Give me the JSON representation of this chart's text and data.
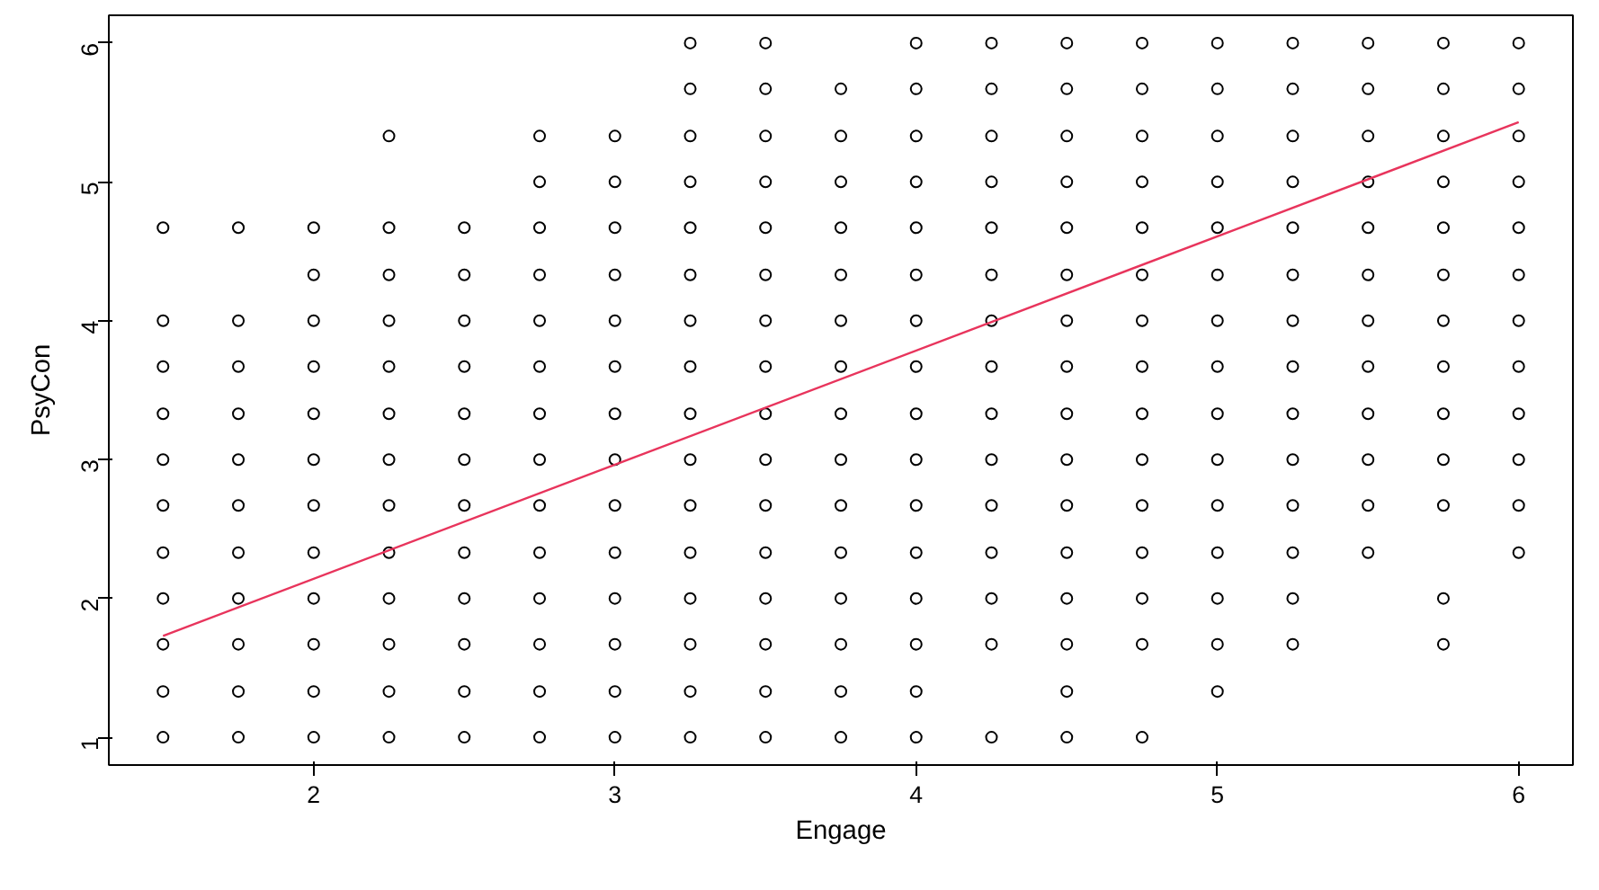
{
  "chart_data": {
    "type": "scatter",
    "xlabel": "Engage",
    "ylabel": "PsyCon",
    "xlim": [
      1.32,
      6.18
    ],
    "ylim": [
      0.8,
      6.2
    ],
    "xticks": [
      2,
      3,
      4,
      5,
      6
    ],
    "yticks": [
      1,
      2,
      3,
      4,
      5,
      6
    ],
    "grid": false,
    "series": [
      {
        "marker": "circle",
        "color": "#000000",
        "x": [
          1.5,
          1.5,
          1.5,
          1.5,
          1.5,
          1.5,
          1.5,
          1.5,
          1.5,
          1.5,
          1.5,
          1.75,
          1.75,
          1.75,
          1.75,
          1.75,
          1.75,
          1.75,
          1.75,
          1.75,
          1.75,
          1.75,
          2,
          2,
          2,
          2,
          2,
          2,
          2,
          2,
          2,
          2,
          2,
          2,
          2.25,
          2.25,
          2.25,
          2.25,
          2.25,
          2.25,
          2.25,
          2.25,
          2.25,
          2.25,
          2.25,
          2.25,
          2.25,
          2.5,
          2.5,
          2.5,
          2.5,
          2.5,
          2.5,
          2.5,
          2.5,
          2.5,
          2.5,
          2.5,
          2.5,
          2.75,
          2.75,
          2.75,
          2.75,
          2.75,
          2.75,
          2.75,
          2.75,
          2.75,
          2.75,
          2.75,
          2.75,
          2.75,
          2.75,
          3,
          3,
          3,
          3,
          3,
          3,
          3,
          3,
          3,
          3,
          3,
          3,
          3,
          3,
          3.25,
          3.25,
          3.25,
          3.25,
          3.25,
          3.25,
          3.25,
          3.25,
          3.25,
          3.25,
          3.25,
          3.25,
          3.25,
          3.25,
          3.25,
          3.25,
          3.5,
          3.5,
          3.5,
          3.5,
          3.5,
          3.5,
          3.5,
          3.5,
          3.5,
          3.5,
          3.5,
          3.5,
          3.5,
          3.5,
          3.5,
          3.5,
          3.75,
          3.75,
          3.75,
          3.75,
          3.75,
          3.75,
          3.75,
          3.75,
          3.75,
          3.75,
          3.75,
          3.75,
          3.75,
          3.75,
          3.75,
          4,
          4,
          4,
          4,
          4,
          4,
          4,
          4,
          4,
          4,
          4,
          4,
          4,
          4,
          4,
          4,
          4.25,
          4.25,
          4.25,
          4.25,
          4.25,
          4.25,
          4.25,
          4.25,
          4.25,
          4.25,
          4.25,
          4.25,
          4.25,
          4.25,
          4.25,
          4.5,
          4.5,
          4.5,
          4.5,
          4.5,
          4.5,
          4.5,
          4.5,
          4.5,
          4.5,
          4.5,
          4.5,
          4.5,
          4.5,
          4.5,
          4.5,
          4.75,
          4.75,
          4.75,
          4.75,
          4.75,
          4.75,
          4.75,
          4.75,
          4.75,
          4.75,
          4.75,
          4.75,
          4.75,
          4.75,
          4.75,
          5,
          5,
          5,
          5,
          5,
          5,
          5,
          5,
          5,
          5,
          5,
          5,
          5,
          5,
          5,
          5.25,
          5.25,
          5.25,
          5.25,
          5.25,
          5.25,
          5.25,
          5.25,
          5.25,
          5.25,
          5.25,
          5.25,
          5.25,
          5.25,
          5.5,
          5.5,
          5.5,
          5.5,
          5.5,
          5.5,
          5.5,
          5.5,
          5.5,
          5.5,
          5.5,
          5.5,
          5.75,
          5.75,
          5.75,
          5.75,
          5.75,
          5.75,
          5.75,
          5.75,
          5.75,
          5.75,
          5.75,
          5.75,
          5.75,
          6,
          6,
          6,
          6,
          6,
          6,
          6,
          6,
          6,
          6,
          6,
          6
        ],
        "values": [
          1,
          1.33,
          1.67,
          2,
          2.33,
          2.67,
          3,
          3.33,
          3.67,
          4,
          4.67,
          1,
          1.33,
          1.67,
          2,
          2.33,
          2.67,
          3,
          3.33,
          3.67,
          4,
          4.67,
          1,
          1.33,
          1.67,
          2,
          2.33,
          2.67,
          3,
          3.33,
          3.67,
          4,
          4.33,
          4.67,
          1,
          1.33,
          1.67,
          2,
          2.33,
          2.67,
          3,
          3.33,
          3.67,
          4,
          4.33,
          4.67,
          5.33,
          1,
          1.33,
          1.67,
          2,
          2.33,
          2.67,
          3,
          3.33,
          3.67,
          4,
          4.33,
          4.67,
          1,
          1.33,
          1.67,
          2,
          2.33,
          2.67,
          3,
          3.33,
          3.67,
          4,
          4.33,
          4.67,
          5,
          5.33,
          1,
          1.33,
          1.67,
          2,
          2.33,
          2.67,
          3,
          3.33,
          3.67,
          4,
          4.33,
          4.67,
          5,
          5.33,
          1,
          1.33,
          1.67,
          2,
          2.33,
          2.67,
          3,
          3.33,
          3.67,
          4,
          4.33,
          4.67,
          5,
          5.33,
          5.67,
          6,
          1,
          1.33,
          1.67,
          2,
          2.33,
          2.67,
          3,
          3.33,
          3.67,
          4,
          4.33,
          4.67,
          5,
          5.33,
          5.67,
          6,
          1,
          1.33,
          1.67,
          2,
          2.33,
          2.67,
          3,
          3.33,
          3.67,
          4,
          4.33,
          4.67,
          5,
          5.33,
          5.67,
          1,
          1.33,
          1.67,
          2,
          2.33,
          2.67,
          3,
          3.33,
          3.67,
          4,
          4.33,
          4.67,
          5,
          5.33,
          5.67,
          6,
          1,
          1.67,
          2,
          2.33,
          2.67,
          3,
          3.33,
          3.67,
          4,
          4.33,
          4.67,
          5,
          5.33,
          5.67,
          6,
          1,
          1.33,
          1.67,
          2,
          2.33,
          2.67,
          3,
          3.33,
          3.67,
          4,
          4.33,
          4.67,
          5,
          5.33,
          5.67,
          6,
          1,
          1.67,
          2,
          2.33,
          2.67,
          3,
          3.33,
          3.67,
          4,
          4.33,
          4.67,
          5,
          5.33,
          5.67,
          6,
          1.33,
          1.67,
          2,
          2.33,
          2.67,
          3,
          3.33,
          3.67,
          4,
          4.33,
          4.67,
          5,
          5.33,
          5.67,
          6,
          1.67,
          2,
          2.33,
          2.67,
          3,
          3.33,
          3.67,
          4,
          4.33,
          4.67,
          5,
          5.33,
          5.67,
          6,
          2.33,
          2.67,
          3,
          3.33,
          3.67,
          4,
          4.33,
          4.67,
          5,
          5.33,
          5.67,
          6,
          1.67,
          2,
          2.67,
          3,
          3.33,
          3.67,
          4,
          4.33,
          4.67,
          5,
          5.33,
          5.67,
          6,
          2.33,
          2.67,
          3,
          3.33,
          3.67,
          4,
          4.33,
          4.67,
          5,
          5.33,
          5.67,
          6
        ]
      },
      {
        "type": "line",
        "color": "#e8345c",
        "x": [
          1.5,
          6
        ],
        "values": [
          1.73,
          5.43
        ]
      }
    ]
  }
}
